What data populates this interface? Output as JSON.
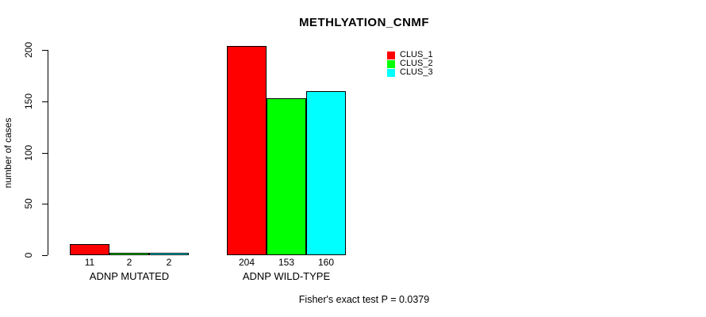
{
  "title": "METHLYATION_CNMF",
  "footer": "Fisher's exact test P = 0.0379",
  "chart_data": {
    "type": "bar",
    "title": "METHLYATION_CNMF",
    "xlabel": "",
    "ylabel": "number of cases",
    "ylim": [
      0,
      200
    ],
    "yticks": [
      0,
      50,
      100,
      150,
      200
    ],
    "categories": [
      "ADNP MUTATED",
      "ADNP WILD-TYPE"
    ],
    "series": [
      {
        "name": "CLUS_1",
        "color": "#ff0000",
        "values": [
          11,
          204
        ]
      },
      {
        "name": "CLUS_2",
        "color": "#00ff00",
        "values": [
          2,
          153
        ]
      },
      {
        "name": "CLUS_3",
        "color": "#00ffff",
        "values": [
          2,
          160
        ]
      }
    ],
    "bar_value_labels": [
      [
        "11",
        "2",
        "2"
      ],
      [
        "204",
        "153",
        "160"
      ]
    ],
    "legend_position": "top-right",
    "grid": false,
    "annotation": "Fisher's exact test P = 0.0379"
  }
}
